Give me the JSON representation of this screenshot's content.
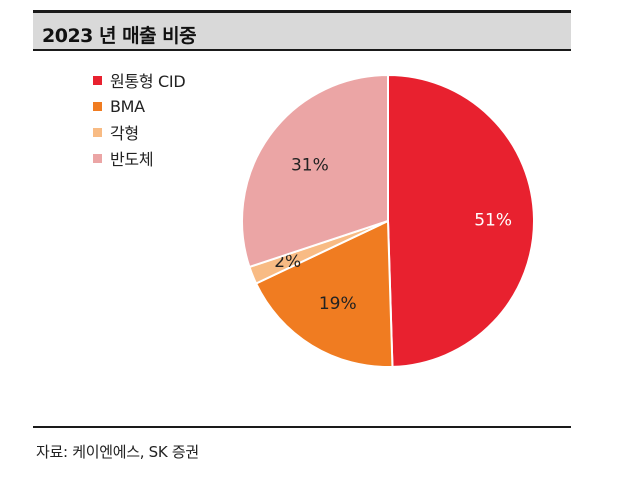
{
  "header": {
    "title": "2023 년 매출 비중"
  },
  "footer": {
    "source": "자료: 케이엔에스, SK 증권"
  },
  "chart_data": {
    "type": "pie",
    "title": "2023 년 매출 비중",
    "legend_position": "top-left",
    "slices": [
      {
        "label": "원통형 CID",
        "value": 51,
        "value_label": "51%",
        "color": "#e8212f"
      },
      {
        "label": "BMA",
        "value": 19,
        "value_label": "19%",
        "color": "#f07c21"
      },
      {
        "label": "각형",
        "value": 2,
        "value_label": "2%",
        "color": "#f8bb84"
      },
      {
        "label": "반도체",
        "value": 31,
        "value_label": "31%",
        "color": "#eba5a5"
      }
    ]
  }
}
